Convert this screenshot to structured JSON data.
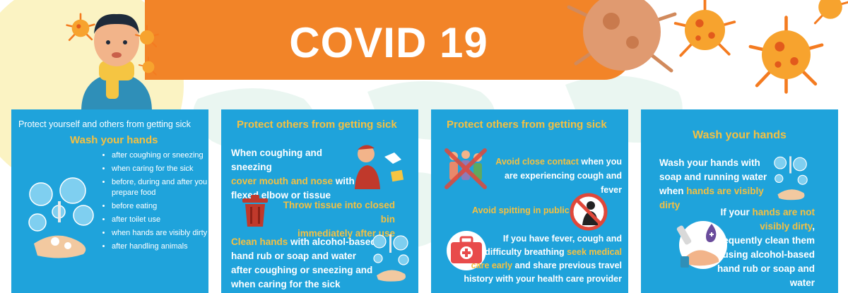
{
  "banner": {
    "title": "COVID 19"
  },
  "colors": {
    "orange": "#f28428",
    "panel_blue": "#1fa3db",
    "highlight": "#f5c041",
    "virus": "#f47b20"
  },
  "panel1": {
    "heading": "Protect yourself and others from getting sick",
    "subheading": "Wash your hands",
    "items": [
      "after coughing or sneezing",
      "when caring for the sick",
      "before, during and after you prepare food",
      "before eating",
      "after toilet use",
      "when hands are visibly dirty",
      "after handling animals"
    ],
    "icon": "handwashing-bubbles-icon"
  },
  "panel2": {
    "heading": "Protect others from getting sick",
    "block1": {
      "line1": "When coughing and sneezing",
      "hl": "cover mouth and nose",
      "after_hl": " with",
      "line3": "flexed elbow or tissue"
    },
    "block2": {
      "line1": "Throw tissue into closed bin",
      "line2": "immediately after use"
    },
    "block3": {
      "hl": "Clean hands",
      "line1": " with alcohol-based",
      "line2": "hand rub or soap and water",
      "line3": "after coughing or sneezing and",
      "line4": "when caring for the sick"
    },
    "icons": [
      "sneezing-person-icon",
      "trash-bin-icon",
      "handwashing-icon"
    ]
  },
  "panel3": {
    "heading": "Protect others from getting sick",
    "block1": {
      "hl": "Avoid close contact",
      "after_hl": " when you",
      "line2": "are experiencing cough and fever"
    },
    "block2": {
      "text": "Avoid spitting in public"
    },
    "block3": {
      "line1": "If you have fever, cough and",
      "line2a": "difficulty breathing ",
      "hl1": "seek medical",
      "hl2": "care early",
      "line3b": " and share previous travel",
      "line4": "history with your health care provider"
    },
    "icons": [
      "crowd-crossed-icon",
      "no-spitting-icon",
      "first-aid-kit-icon"
    ]
  },
  "panel4": {
    "heading": "Wash your hands",
    "block1": {
      "line1": "Wash your hands with",
      "line2": "soap and running water",
      "line3a": "when ",
      "hl1": "hands are visibly",
      "hl2": "dirty"
    },
    "block2": {
      "line1a": "If your ",
      "hl1": "hands are not",
      "hl2": "visibly dirty",
      "line2b": ",",
      "line3": "frequently clean them",
      "line4": "by using alcohol-based",
      "line5": "hand rub or soap and",
      "line6": "water"
    },
    "icons": [
      "handwashing-icon",
      "sanitizer-dispenser-icon"
    ]
  }
}
